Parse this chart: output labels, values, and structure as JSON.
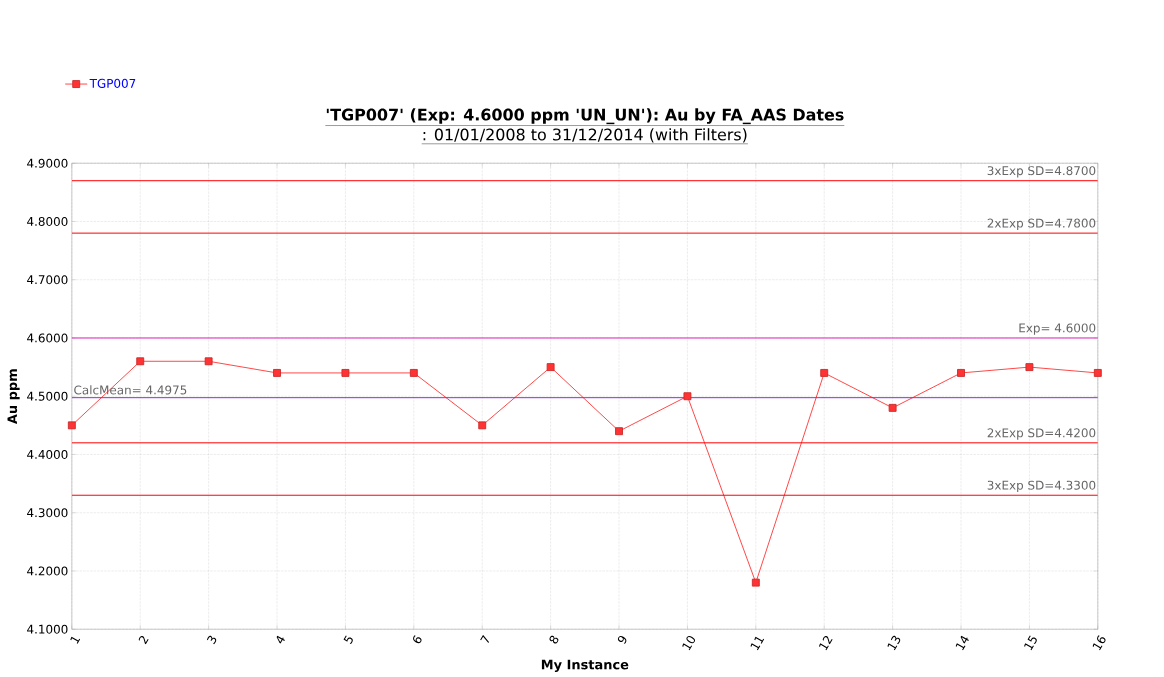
{
  "chart_data": {
    "type": "line",
    "title": "'TGP007' (Exp: 4.6000 ppm 'UN_UN'): Au by FA_AAS Dates",
    "subtitle": ": 01/01/2008 to 31/12/2014 (with Filters)",
    "xlabel": "My Instance",
    "ylabel": "Au ppm",
    "x": [
      1,
      2,
      3,
      4,
      5,
      6,
      7,
      8,
      9,
      10,
      11,
      12,
      13,
      14,
      15,
      16
    ],
    "series": [
      {
        "name": "TGP007",
        "color": "#ff3333",
        "values": [
          4.45,
          4.56,
          4.56,
          4.54,
          4.54,
          4.54,
          4.45,
          4.55,
          4.44,
          4.5,
          4.18,
          4.54,
          4.48,
          4.54,
          4.55,
          4.54
        ]
      }
    ],
    "xlim": [
      1,
      16
    ],
    "xticks": [
      1,
      2,
      3,
      4,
      5,
      6,
      7,
      8,
      9,
      10,
      11,
      12,
      13,
      14,
      15,
      16
    ],
    "ylim": [
      4.1,
      4.9
    ],
    "yticks": [
      {
        "value": 4.1,
        "label": "4.1000"
      },
      {
        "value": 4.2,
        "label": "4.2000"
      },
      {
        "value": 4.3,
        "label": "4.3000"
      },
      {
        "value": 4.4,
        "label": "4.4000"
      },
      {
        "value": 4.5,
        "label": "4.5000"
      },
      {
        "value": 4.6,
        "label": "4.6000"
      },
      {
        "value": 4.7,
        "label": "4.7000"
      },
      {
        "value": 4.8,
        "label": "4.8000"
      },
      {
        "value": 4.9,
        "label": "4.9000"
      }
    ],
    "ref_lines": [
      {
        "axis": "y",
        "value": 4.87,
        "label": "3xExp SD=4.8700",
        "color": "#ff0000"
      },
      {
        "axis": "y",
        "value": 4.78,
        "label": "2xExp SD=4.7800",
        "color": "#ff0000"
      },
      {
        "axis": "y",
        "value": 4.6,
        "label": "Exp= 4.6000",
        "color": "#e020c0"
      },
      {
        "axis": "y",
        "value": 4.4975,
        "label": "CalcMean= 4.4975",
        "color": "#8a2be2"
      },
      {
        "axis": "y",
        "value": 4.42,
        "label": "2xExp SD=4.4200",
        "color": "#ff0000"
      },
      {
        "axis": "y",
        "value": 4.33,
        "label": "3xExp SD=4.3300",
        "color": "#ff0000"
      }
    ],
    "grid": true,
    "legend": "top left",
    "marker": "square",
    "line_style": "solid"
  }
}
